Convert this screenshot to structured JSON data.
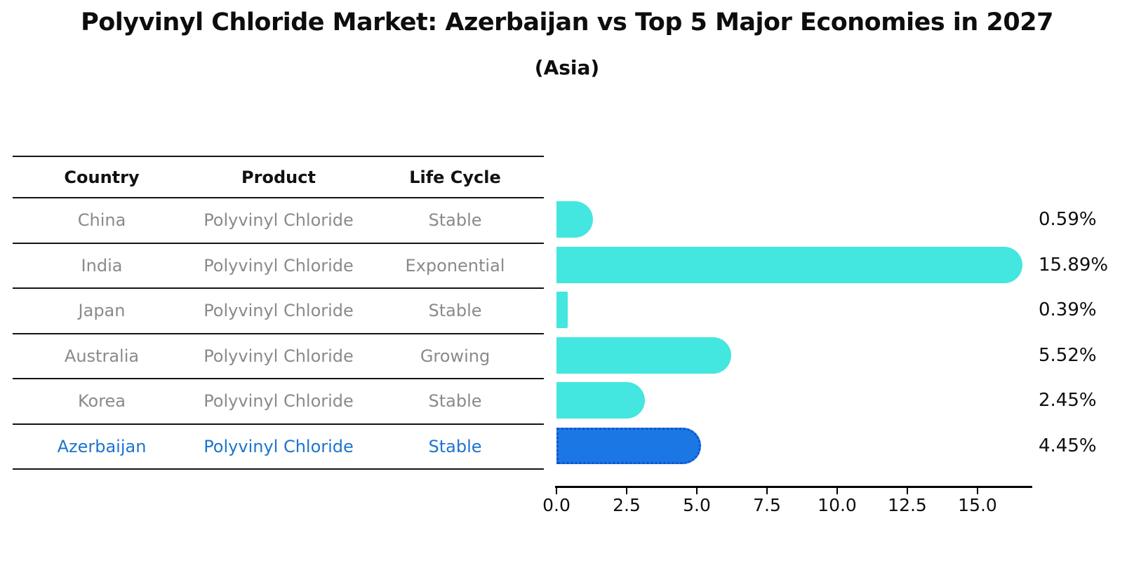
{
  "title": "Polyvinyl Chloride Market: Azerbaijan vs Top 5 Major Economies in 2027",
  "subtitle": "(Asia)",
  "table": {
    "headers": [
      "Country",
      "Product",
      "Life Cycle"
    ],
    "rows": [
      {
        "country": "China",
        "product": "Polyvinyl Chloride",
        "life_cycle": "Stable",
        "highlight": false
      },
      {
        "country": "India",
        "product": "Polyvinyl Chloride",
        "life_cycle": "Exponential",
        "highlight": false
      },
      {
        "country": "Japan",
        "product": "Polyvinyl Chloride",
        "life_cycle": "Stable",
        "highlight": false
      },
      {
        "country": "Australia",
        "product": "Polyvinyl Chloride",
        "life_cycle": "Growing",
        "highlight": false
      },
      {
        "country": "Korea",
        "product": "Polyvinyl Chloride",
        "life_cycle": "Stable",
        "highlight": false
      },
      {
        "country": "Azerbaijan",
        "product": "Polyvinyl Chloride",
        "life_cycle": "Stable",
        "highlight": true
      }
    ]
  },
  "chart_data": {
    "type": "bar",
    "orientation": "horizontal",
    "title": "Polyvinyl Chloride Market: Azerbaijan vs Top 5 Major Economies in 2027 (Asia)",
    "categories": [
      "China",
      "India",
      "Japan",
      "Australia",
      "Korea",
      "Azerbaijan"
    ],
    "values": [
      0.59,
      15.89,
      0.39,
      5.52,
      2.45,
      4.45
    ],
    "value_labels": [
      "0.59%",
      "15.89%",
      "0.39%",
      "5.52%",
      "2.45%",
      "4.45%"
    ],
    "highlight_index": 5,
    "x_ticks": [
      "0.0",
      "2.5",
      "5.0",
      "7.5",
      "10.0",
      "12.5",
      "15.0"
    ],
    "x_tick_values": [
      0,
      2.5,
      5,
      7.5,
      10,
      12.5,
      15
    ],
    "xlim": [
      0,
      16.9
    ],
    "grid": false,
    "legend": false,
    "colors": {
      "bar_default": "#44E6E0",
      "bar_highlight": "#1B77E3",
      "bar_highlight_border": "#0D54D2",
      "value_label_text": "#0e0e0e",
      "table_text_muted": "#8a8a8a",
      "table_text_highlight": "#1d74cd",
      "axis": "#000000"
    }
  }
}
